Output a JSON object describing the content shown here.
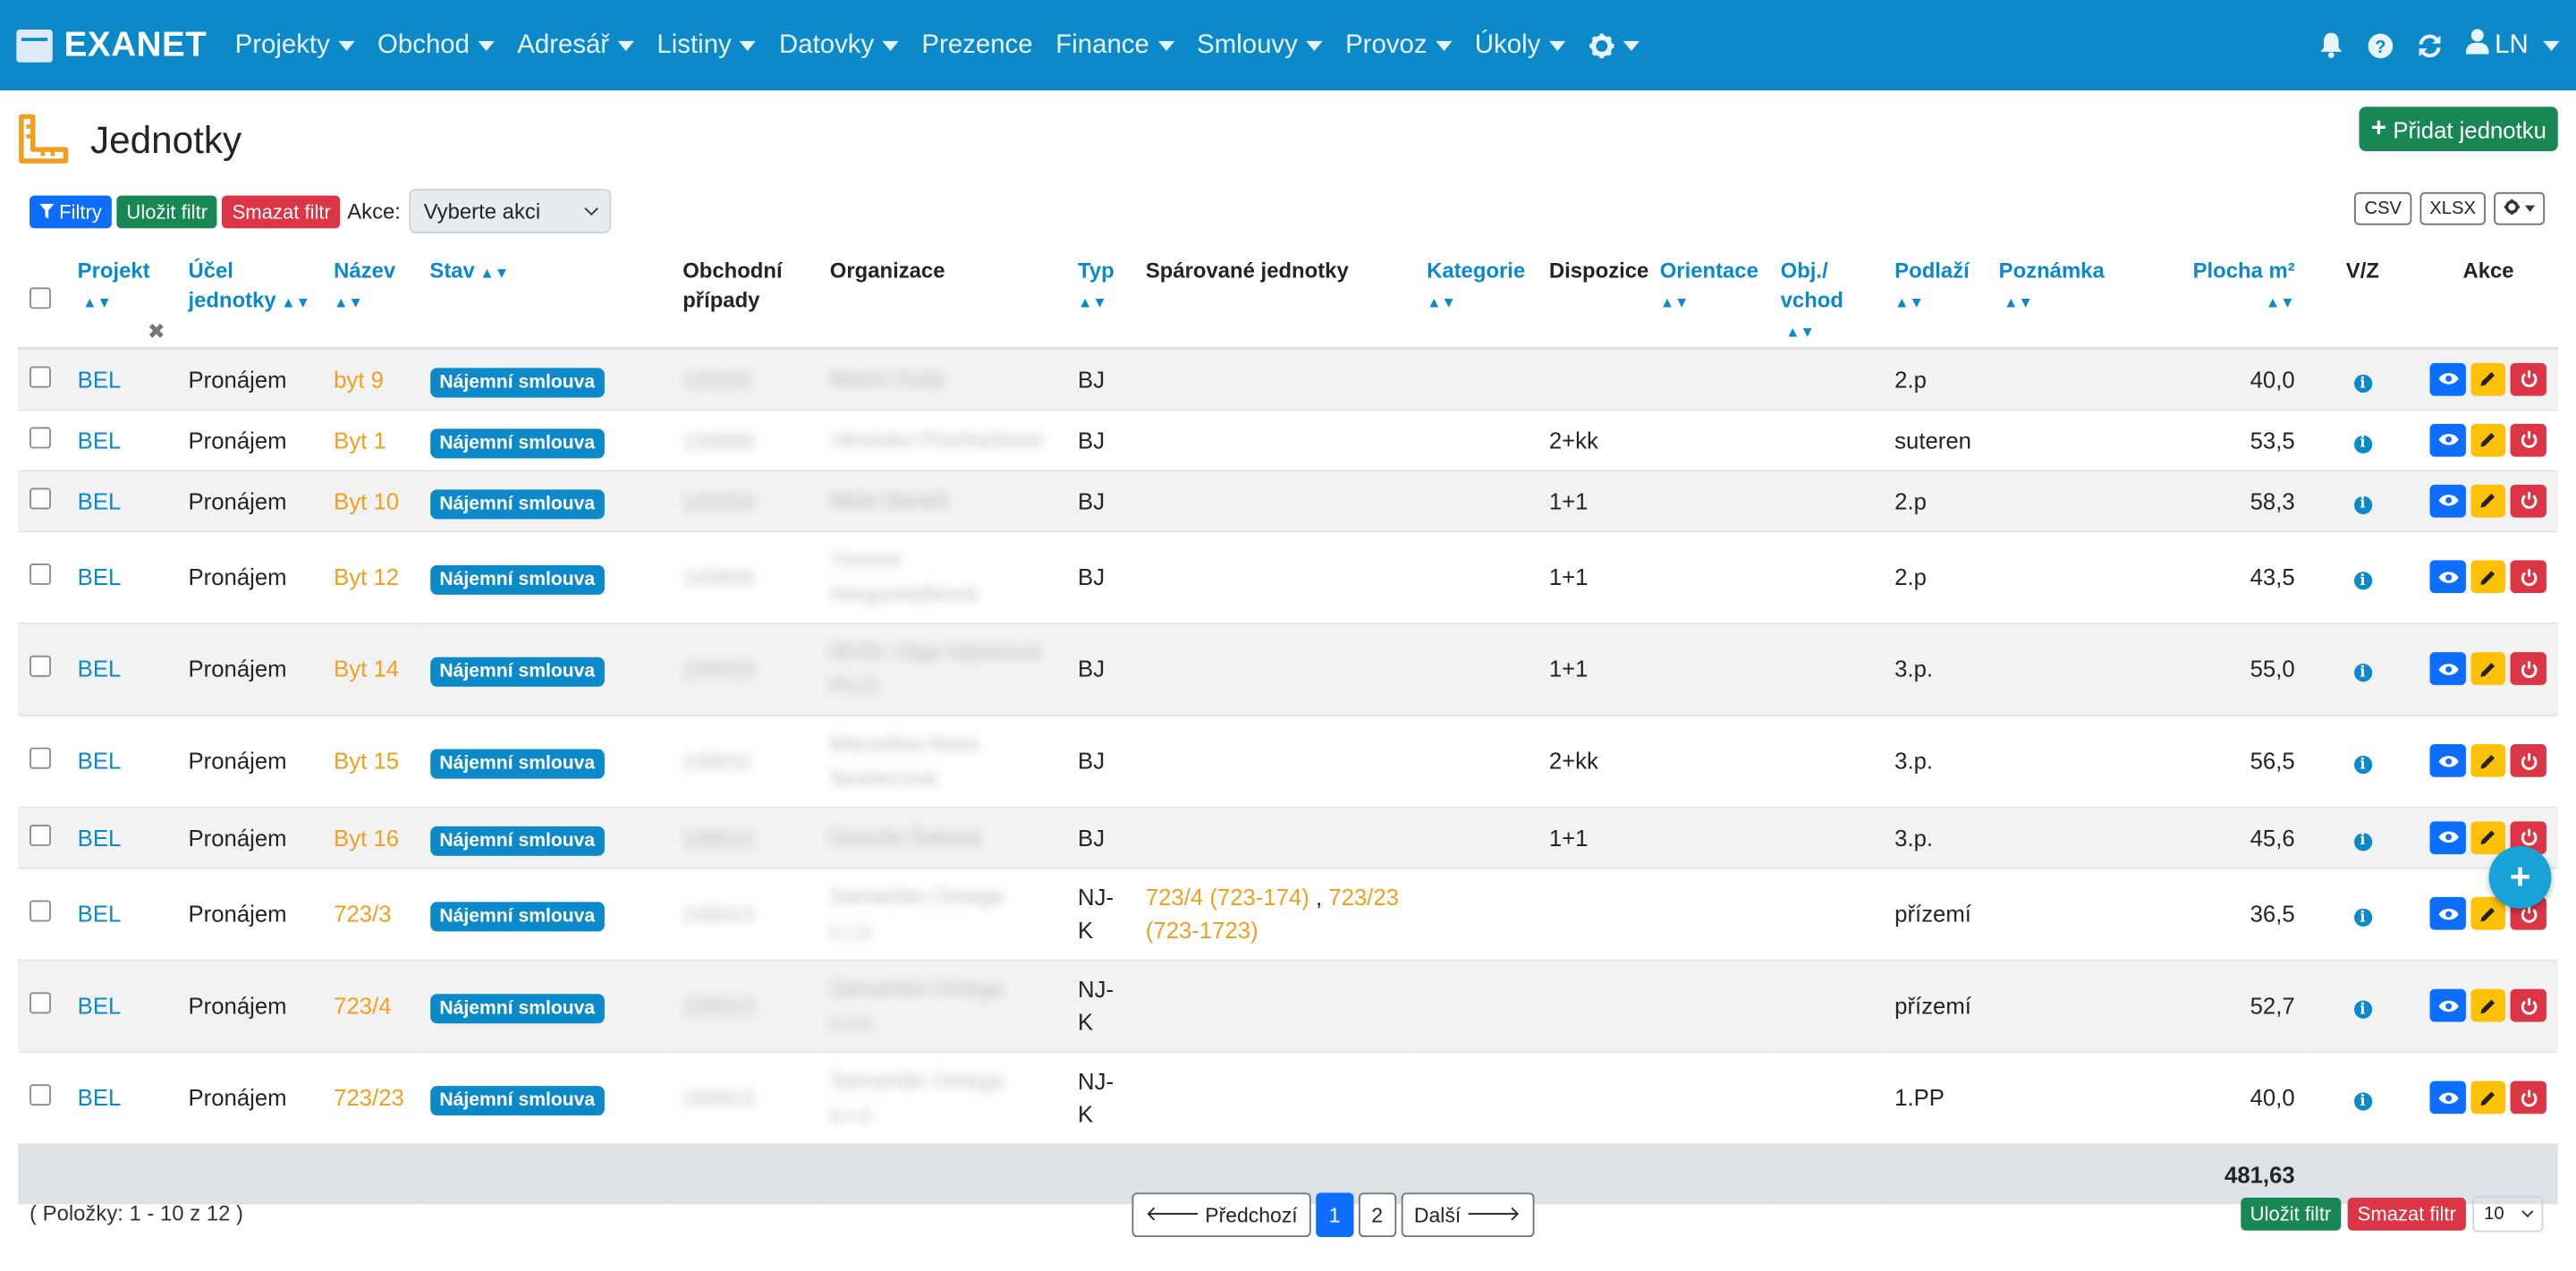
{
  "nav": {
    "brand": "EXANET",
    "items": [
      {
        "label": "Projekty",
        "dropdown": true
      },
      {
        "label": "Obchod",
        "dropdown": true
      },
      {
        "label": "Adresář",
        "dropdown": true
      },
      {
        "label": "Listiny",
        "dropdown": true
      },
      {
        "label": "Datovky",
        "dropdown": true
      },
      {
        "label": "Prezence",
        "dropdown": false
      },
      {
        "label": "Finance",
        "dropdown": true
      },
      {
        "label": "Smlouvy",
        "dropdown": true
      },
      {
        "label": "Provoz",
        "dropdown": true
      },
      {
        "label": "Úkoly",
        "dropdown": true
      }
    ],
    "user": "LN"
  },
  "page": {
    "title": "Jednotky",
    "add_button": "Přidat jednotku"
  },
  "toolbar": {
    "filters": "Filtry",
    "save_filter": "Uložit filtr",
    "clear_filter": "Smazat filtr",
    "actions_label": "Akce:",
    "actions_select": "Vyberte akci",
    "csv": "CSV",
    "xlsx": "XLSX"
  },
  "table": {
    "headers": {
      "projekt": "Projekt",
      "ucel_1": "Účel",
      "ucel_2": "jednotky",
      "nazev": "Název",
      "stav": "Stav",
      "obchodni_1": "Obchodní",
      "obchodni_2": "případy",
      "organizace": "Organizace",
      "typ": "Typ",
      "sparovane": "Spárované jednotky",
      "kategorie": "Kategorie",
      "dispozice": "Dispozice",
      "orientace": "Orientace",
      "obj_1": "Obj./",
      "obj_2": "vchod",
      "podlazi": "Podlaží",
      "poznamka": "Poznámka",
      "plocha": "Plocha m²",
      "vz": "V/Z",
      "akce": "Akce"
    },
    "rows": [
      {
        "projekt": "BEL",
        "ucel": "Pronájem",
        "nazev": "byt 9",
        "stav": "Nájemní smlouva",
        "obchod": "100001",
        "org_1": "Martin Hudy",
        "org_2": "",
        "typ_1": "BJ",
        "typ_2": "",
        "sp_1": "",
        "sp_2": "",
        "sp_3": "",
        "dispozice": "",
        "podlazi": "2.p",
        "plocha": "40,0"
      },
      {
        "projekt": "BEL",
        "ucel": "Pronájem",
        "nazev": "Byt 1",
        "stav": "Nájemní smlouva",
        "obchod": "100008",
        "org_1": "Veronika Procházková",
        "org_2": "",
        "typ_1": "BJ",
        "typ_2": "",
        "sp_1": "",
        "sp_2": "",
        "sp_3": "",
        "dispozice": "2+kk",
        "podlazi": "suteren",
        "plocha": "53,5"
      },
      {
        "projekt": "BEL",
        "ucel": "Pronájem",
        "nazev": "Byt 10",
        "stav": "Nájemní smlouva",
        "obchod": "100003",
        "org_1": "Milan Beneš",
        "org_2": "",
        "typ_1": "BJ",
        "typ_2": "",
        "sp_1": "",
        "sp_2": "",
        "sp_3": "",
        "dispozice": "1+1",
        "podlazi": "2.p",
        "plocha": "58,3"
      },
      {
        "projekt": "BEL",
        "ucel": "Pronájem",
        "nazev": "Byt 12",
        "stav": "Nájemní smlouva",
        "obchod": "100009",
        "org_1": "Yvonne",
        "org_2": "Hergovkačková",
        "typ_1": "BJ",
        "typ_2": "",
        "sp_1": "",
        "sp_2": "",
        "sp_3": "",
        "dispozice": "1+1",
        "podlazi": "2.p",
        "plocha": "43,5"
      },
      {
        "projekt": "BEL",
        "ucel": "Pronájem",
        "nazev": "Byt 14",
        "stav": "Nájemní smlouva",
        "obchod": "100010",
        "org_1": "MVDr. Olga Vajnerová",
        "org_2": "Ph.D.",
        "typ_1": "BJ",
        "typ_2": "",
        "sp_1": "",
        "sp_2": "",
        "sp_3": "",
        "dispozice": "1+1",
        "podlazi": "3.p.",
        "plocha": "55,0"
      },
      {
        "projekt": "BEL",
        "ucel": "Pronájem",
        "nazev": "Byt 15",
        "stav": "Nájemní smlouva",
        "obchod": "100011",
        "org_1": "Marcelína Anna",
        "org_2": "Sestercová",
        "typ_1": "BJ",
        "typ_2": "",
        "sp_1": "",
        "sp_2": "",
        "sp_3": "",
        "dispozice": "2+kk",
        "podlazi": "3.p.",
        "plocha": "56,5"
      },
      {
        "projekt": "BEL",
        "ucel": "Pronájem",
        "nazev": "Byt 16",
        "stav": "Nájemní smlouva",
        "obchod": "100012",
        "org_1": "Danuše Šuková",
        "org_2": "",
        "typ_1": "BJ",
        "typ_2": "",
        "sp_1": "",
        "sp_2": "",
        "sp_3": "",
        "dispozice": "1+1",
        "podlazi": "3.p.",
        "plocha": "45,6"
      },
      {
        "projekt": "BEL",
        "ucel": "Pronájem",
        "nazev": "723/3",
        "stav": "Nájemní smlouva",
        "obchod": "100013",
        "org_1": "Samaritán Omega s.r.o.",
        "org_2": "",
        "typ_1": "NJ-",
        "typ_2": "K",
        "sp_1": "723/4 (723-174)",
        "sp_2": "723/23",
        "sp_3": "(723-1723)",
        "dispozice": "",
        "podlazi": "přízemí",
        "plocha": "36,5"
      },
      {
        "projekt": "BEL",
        "ucel": "Pronájem",
        "nazev": "723/4",
        "stav": "Nájemní smlouva",
        "obchod": "100013",
        "org_1": "Samaritán Omega s.r.o.",
        "org_2": "",
        "typ_1": "NJ-",
        "typ_2": "K",
        "sp_1": "",
        "sp_2": "",
        "sp_3": "",
        "dispozice": "",
        "podlazi": "přízemí",
        "plocha": "52,7"
      },
      {
        "projekt": "BEL",
        "ucel": "Pronájem",
        "nazev": "723/23",
        "stav": "Nájemní smlouva",
        "obchod": "100013",
        "org_1": "Samaritán Omega s.r.o.",
        "org_2": "",
        "typ_1": "NJ-",
        "typ_2": "K",
        "sp_1": "",
        "sp_2": "",
        "sp_3": "",
        "dispozice": "",
        "podlazi": "1.PP",
        "plocha": "40,0"
      }
    ],
    "total_area": "481,63"
  },
  "footer": {
    "items_info": "( Položky: 1 - 10 z 12 )",
    "prev": "Předchozí",
    "pages": [
      "1",
      "2"
    ],
    "next": "Další",
    "save_filter": "Uložit filtr",
    "clear_filter": "Smazat filtr",
    "per_page": "10"
  },
  "fab": "+",
  "colors": {
    "navbar": "#0b89c8",
    "accent_orange": "#f0a020",
    "success": "#198754",
    "danger": "#dc3545",
    "primary": "#0d6efd",
    "warning": "#ffc107"
  }
}
